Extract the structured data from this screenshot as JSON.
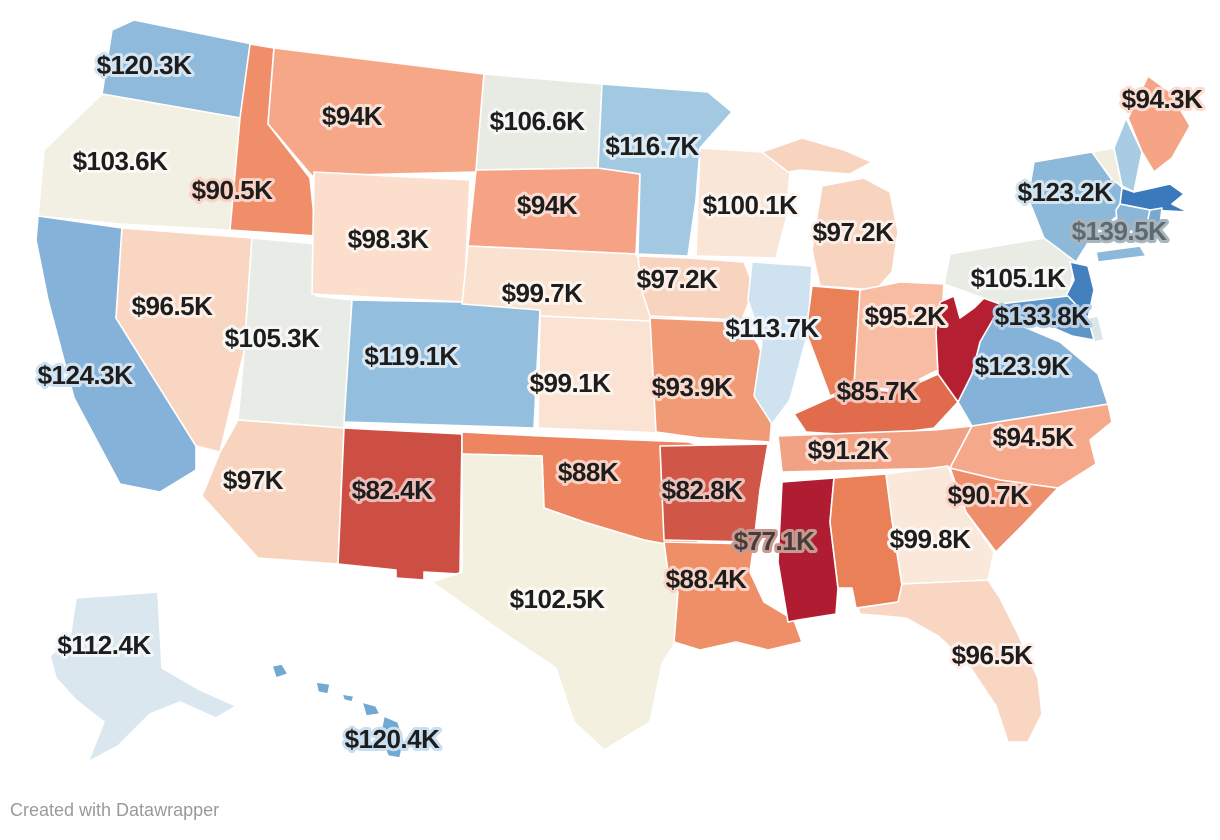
{
  "footer": {
    "credit": "Created with Datawrapper"
  },
  "chart_data": {
    "type": "choropleth",
    "region": "United States (Albers layout with Alaska and Hawaii insets)",
    "title": "",
    "unit": "USD (thousands)",
    "legend": "none visible",
    "color_scale": {
      "type": "diverging",
      "low_color": "#b01d33",
      "mid_color": "#f3f0e2",
      "high_color": "#3a79bb",
      "note": "red = lower values, cream = ~102-107K midpoint, blue = higher values"
    },
    "states": [
      {
        "id": "WA",
        "name": "Washington",
        "label": "$120.3K",
        "value_k": 120.3,
        "color": "#8fbadb"
      },
      {
        "id": "OR",
        "name": "Oregon",
        "label": "$103.6K",
        "value_k": 103.6,
        "color": "#f2f0e2"
      },
      {
        "id": "CA",
        "name": "California",
        "label": "$124.3K",
        "value_k": 124.3,
        "color": "#84b2d8"
      },
      {
        "id": "ID",
        "name": "Idaho",
        "label": "$90.5K",
        "value_k": 90.5,
        "color": "#ef8e68"
      },
      {
        "id": "NV",
        "name": "Nevada",
        "label": "$96.5K",
        "value_k": 96.5,
        "color": "#f9d6c2"
      },
      {
        "id": "UT",
        "name": "Utah",
        "label": "$105.3K",
        "value_k": 105.3,
        "color": "#e9ece6"
      },
      {
        "id": "AZ",
        "name": "Arizona",
        "label": "$97K",
        "value_k": 97.0,
        "color": "#f8d4bf"
      },
      {
        "id": "MT",
        "name": "Montana",
        "label": "$94K",
        "value_k": 94.0,
        "color": "#f5a788"
      },
      {
        "id": "WY",
        "name": "Wyoming",
        "label": "$98.3K",
        "value_k": 98.3,
        "color": "#fbdfcc"
      },
      {
        "id": "CO",
        "name": "Colorado",
        "label": "$119.1K",
        "value_k": 119.1,
        "color": "#94bedd"
      },
      {
        "id": "NM",
        "name": "New Mexico",
        "label": "$82.4K",
        "value_k": 82.4,
        "color": "#cd4f43"
      },
      {
        "id": "ND",
        "name": "North Dakota",
        "label": "$106.6K",
        "value_k": 106.6,
        "color": "#e7ebe4"
      },
      {
        "id": "SD",
        "name": "South Dakota",
        "label": "$94K",
        "value_k": 94.0,
        "color": "#f5a384"
      },
      {
        "id": "NE",
        "name": "Nebraska",
        "label": "$99.7K",
        "value_k": 99.7,
        "color": "#f9e2d0"
      },
      {
        "id": "KS",
        "name": "Kansas",
        "label": "$99.1K",
        "value_k": 99.1,
        "color": "#fae3d3"
      },
      {
        "id": "OK",
        "name": "Oklahoma",
        "label": "$88K",
        "value_k": 88.0,
        "color": "#ed8660"
      },
      {
        "id": "TX",
        "name": "Texas",
        "label": "$102.5K",
        "value_k": 102.5,
        "color": "#f4f0e0"
      },
      {
        "id": "MN",
        "name": "Minnesota",
        "label": "$116.7K",
        "value_k": 116.7,
        "color": "#a3c8e2"
      },
      {
        "id": "IA",
        "name": "Iowa",
        "label": "$97.2K",
        "value_k": 97.2,
        "color": "#f8d3bd"
      },
      {
        "id": "MO",
        "name": "Missouri",
        "label": "$93.9K",
        "value_k": 93.9,
        "color": "#f19a76"
      },
      {
        "id": "AR",
        "name": "Arkansas",
        "label": "$82.8K",
        "value_k": 82.8,
        "color": "#d05647"
      },
      {
        "id": "LA",
        "name": "Louisiana",
        "label": "$88.4K",
        "value_k": 88.4,
        "color": "#ef8f68"
      },
      {
        "id": "WI",
        "name": "Wisconsin",
        "label": "$100.1K",
        "value_k": 100.1,
        "color": "#fae6d7"
      },
      {
        "id": "IL",
        "name": "Illinois",
        "label": "$113.7K",
        "value_k": 113.7,
        "color": "#cfe2ef"
      },
      {
        "id": "MI",
        "name": "Michigan",
        "label": "$97.2K",
        "value_k": 97.2,
        "color": "#f8d3bd"
      },
      {
        "id": "IN",
        "name": "Indiana",
        "label": null,
        "value_k": null,
        "color": "#ea8057"
      },
      {
        "id": "OH",
        "name": "Ohio",
        "label": "$95.2K",
        "value_k": 95.2,
        "color": "#f7bca1"
      },
      {
        "id": "KY",
        "name": "Kentucky",
        "label": "$85.7K",
        "value_k": 85.7,
        "color": "#e06c4d"
      },
      {
        "id": "TN",
        "name": "Tennessee",
        "label": "$91.2K",
        "value_k": 91.2,
        "color": "#f2a284"
      },
      {
        "id": "MS",
        "name": "Mississippi",
        "label": "$77.1K",
        "value_k": 77.1,
        "color": "#b01d33",
        "label_color": "#453c3c",
        "halo_color": "#c8998f"
      },
      {
        "id": "AL",
        "name": "Alabama",
        "label": null,
        "value_k": null,
        "color": "#ea8058"
      },
      {
        "id": "GA",
        "name": "Georgia",
        "label": "$99.8K",
        "value_k": 99.8,
        "color": "#fae8da"
      },
      {
        "id": "FL",
        "name": "Florida",
        "label": "$96.5K",
        "value_k": 96.5,
        "color": "#f9d6c2"
      },
      {
        "id": "SC",
        "name": "South Carolina",
        "label": "$90.7K",
        "value_k": 90.7,
        "color": "#ee8e6b"
      },
      {
        "id": "NC",
        "name": "North Carolina",
        "label": "$94.5K",
        "value_k": 94.5,
        "color": "#f6a88b"
      },
      {
        "id": "VA",
        "name": "Virginia",
        "label": "$123.9K",
        "value_k": 123.9,
        "color": "#84b2d8"
      },
      {
        "id": "WV",
        "name": "West Virginia",
        "label": null,
        "value_k": null,
        "color": "#b51f32"
      },
      {
        "id": "PA",
        "name": "Pennsylvania",
        "label": "$105.1K",
        "value_k": 105.1,
        "color": "#e9ebe5"
      },
      {
        "id": "NY",
        "name": "New York",
        "label": "$123.2K",
        "value_k": 123.2,
        "color": "#8cb8da"
      },
      {
        "id": "NJ",
        "name": "New Jersey",
        "label": "$133.8K",
        "value_k": 133.8,
        "color": "#4380bd"
      },
      {
        "id": "MA",
        "name": "Massachusetts",
        "label": "$139.5K",
        "value_k": 139.5,
        "color": "#3a79bb",
        "label_color": "#5e6a72",
        "halo_color": "#a9b5bc"
      },
      {
        "id": "CT",
        "name": "Connecticut",
        "label": null,
        "value_k": null,
        "color": "#8ab6da"
      },
      {
        "id": "RI",
        "name": "Rhode Island",
        "label": null,
        "value_k": null,
        "color": "#79a9d1"
      },
      {
        "id": "VT",
        "name": "Vermont",
        "label": null,
        "value_k": null,
        "color": "#f1eee1"
      },
      {
        "id": "NH",
        "name": "New Hampshire",
        "label": null,
        "value_k": null,
        "color": "#a9cce5"
      },
      {
        "id": "ME",
        "name": "Maine",
        "label": "$94.3K",
        "value_k": 94.3,
        "color": "#f5a486"
      },
      {
        "id": "DE",
        "name": "Delaware",
        "label": null,
        "value_k": null,
        "color": "#dce6e9"
      },
      {
        "id": "MD",
        "name": "Maryland",
        "label": null,
        "value_k": null,
        "color": "#5f96c8"
      },
      {
        "id": "AK",
        "name": "Alaska",
        "label": "$112.4K",
        "value_k": 112.4,
        "color": "#dae7ee"
      },
      {
        "id": "HI",
        "name": "Hawaii",
        "label": "$120.4K",
        "value_k": 120.4,
        "color": "#71a9d2"
      }
    ]
  }
}
